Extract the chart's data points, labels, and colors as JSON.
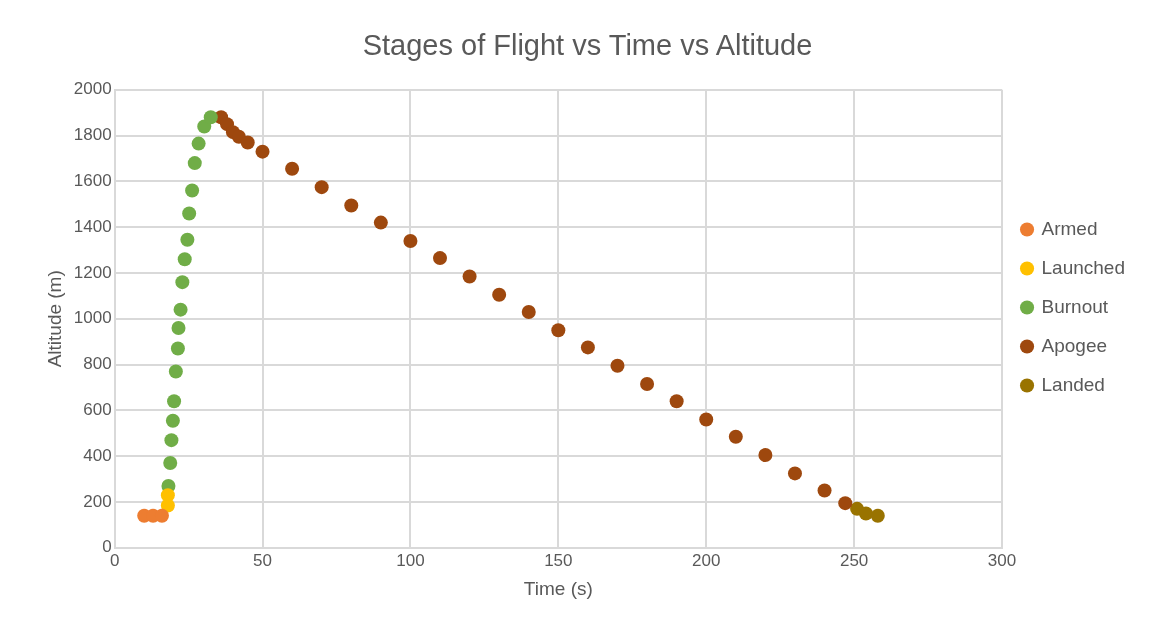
{
  "chart_data": {
    "type": "scatter",
    "title": "Stages of Flight vs Time vs Altitude",
    "xlabel": "Time (s)",
    "ylabel": "Altitude (m)",
    "xlim": [
      0,
      300
    ],
    "xticks": [
      0,
      50,
      100,
      150,
      200,
      250,
      300
    ],
    "ylim": [
      0,
      2000
    ],
    "yticks": [
      0,
      200,
      400,
      600,
      800,
      1000,
      1200,
      1400,
      1600,
      1800,
      2000
    ],
    "grid": true,
    "legend": "right",
    "marker": "circle",
    "series": [
      {
        "name": "Armed",
        "color": "#ed7d31",
        "x": [
          10,
          13,
          16
        ],
        "values": [
          140,
          140,
          140
        ]
      },
      {
        "name": "Launched",
        "color": "#ffc000",
        "x": [
          18,
          18
        ],
        "values": [
          185,
          230
        ]
      },
      {
        "name": "Burnout",
        "color": "#70ad47",
        "x": [
          18.2,
          18.8,
          19.2,
          19.7,
          20.1,
          20.7,
          21.4,
          21.6,
          22.3,
          22.9,
          23.7,
          24.6,
          25.2,
          26.2,
          27.1,
          28.4,
          30.3,
          32.5
        ],
        "values": [
          270,
          370,
          470,
          555,
          640,
          770,
          870,
          960,
          1040,
          1160,
          1260,
          1345,
          1460,
          1560,
          1680,
          1765,
          1840,
          1880
        ]
      },
      {
        "name": "Apogee",
        "color": "#9e480e",
        "x": [
          36,
          38,
          40,
          42,
          45,
          50,
          60,
          70,
          80,
          90,
          100,
          110,
          120,
          130,
          140,
          150,
          160,
          170,
          180,
          190,
          200,
          210,
          220,
          230,
          240,
          247
        ],
        "values": [
          1880,
          1850,
          1815,
          1795,
          1770,
          1730,
          1655,
          1575,
          1495,
          1420,
          1340,
          1265,
          1185,
          1105,
          1030,
          950,
          875,
          795,
          715,
          640,
          560,
          485,
          405,
          325,
          250,
          195
        ]
      },
      {
        "name": "Landed",
        "color": "#997300",
        "x": [
          251,
          254,
          258
        ],
        "values": [
          170,
          150,
          140
        ]
      }
    ]
  }
}
